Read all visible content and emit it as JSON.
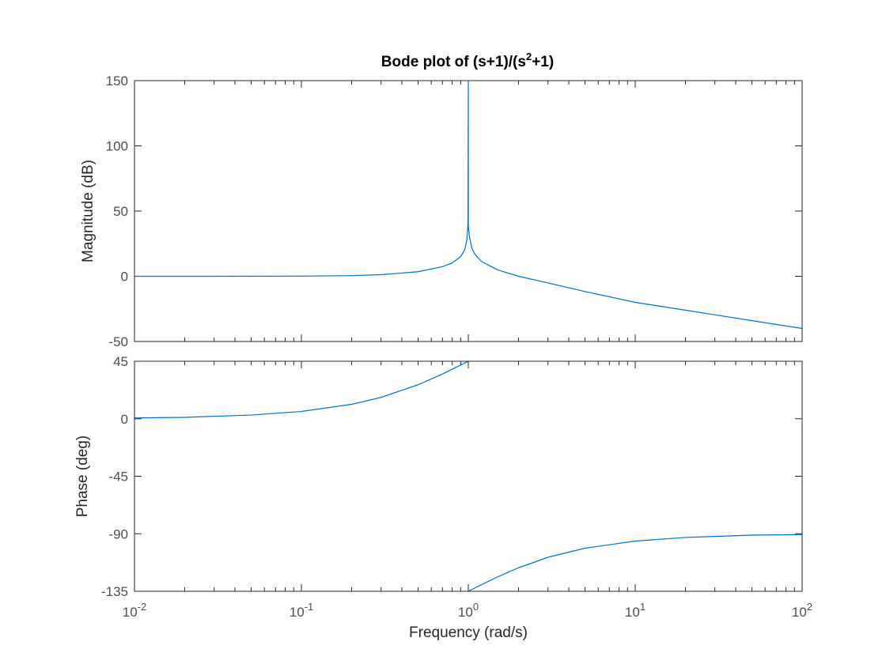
{
  "chart_data": {
    "type": "line",
    "title": {
      "prefix": "Bode plot of (s+1)/(s",
      "exponent": "2",
      "suffix": "+1)"
    },
    "xlabel": "Frequency  (rad/s)",
    "xscale": "log",
    "xlim": [
      0.01,
      100
    ],
    "x_ticks": [
      {
        "base": "10",
        "exp": "-2"
      },
      {
        "base": "10",
        "exp": "-1"
      },
      {
        "base": "10",
        "exp": "0"
      },
      {
        "base": "10",
        "exp": "1"
      },
      {
        "base": "10",
        "exp": "2"
      }
    ],
    "line_color": "#0072BD",
    "subplots": [
      {
        "id": "magnitude",
        "ylabel": "Magnitude (dB)",
        "ylim": [
          -50,
          150
        ],
        "y_ticks": [
          "150",
          "100",
          "50",
          "0",
          "-50"
        ],
        "y_tick_values": [
          150,
          100,
          50,
          0,
          -50
        ],
        "x": [
          0.01,
          0.03,
          0.1,
          0.2,
          0.3,
          0.5,
          0.7,
          0.8,
          0.9,
          0.95,
          0.98,
          0.995,
          0.9999,
          1.0001,
          1.005,
          1.02,
          1.05,
          1.1,
          1.2,
          1.5,
          2,
          3,
          5,
          10,
          20,
          50,
          100
        ],
        "y": [
          0.0,
          0.0,
          0.1,
          0.5,
          1.2,
          3.5,
          7.4,
          10.2,
          15.1,
          20.1,
          27.9,
          40.0,
          150.0,
          40.0,
          35.1,
          29.2,
          21.5,
          16.5,
          11.3,
          4.9,
          0.0,
          -5.1,
          -11.7,
          -20.0,
          -26.0,
          -34.0,
          -40.0
        ]
      },
      {
        "id": "phase",
        "ylabel": "Phase (deg)",
        "ylim": [
          -135,
          45
        ],
        "y_ticks": [
          "45",
          "0",
          "-45",
          "-90",
          "-135"
        ],
        "y_tick_values": [
          45,
          0,
          -45,
          -90,
          -135
        ],
        "segments": [
          {
            "x": [
              0.01,
              0.02,
              0.05,
              0.1,
              0.2,
              0.3,
              0.5,
              0.7,
              0.9,
              1.0
            ],
            "y": [
              0.6,
              1.1,
              2.9,
              5.7,
              11.3,
              16.7,
              26.6,
              35.0,
              42.0,
              45.0
            ]
          },
          {
            "x": [
              1.0,
              1.1,
              1.3,
              1.5,
              2,
              3,
              5,
              10,
              20,
              50,
              100
            ],
            "y": [
              -135.0,
              -132.3,
              -127.6,
              -123.7,
              -116.6,
              -108.4,
              -101.3,
              -95.7,
              -92.9,
              -91.1,
              -90.6
            ]
          }
        ]
      }
    ]
  }
}
